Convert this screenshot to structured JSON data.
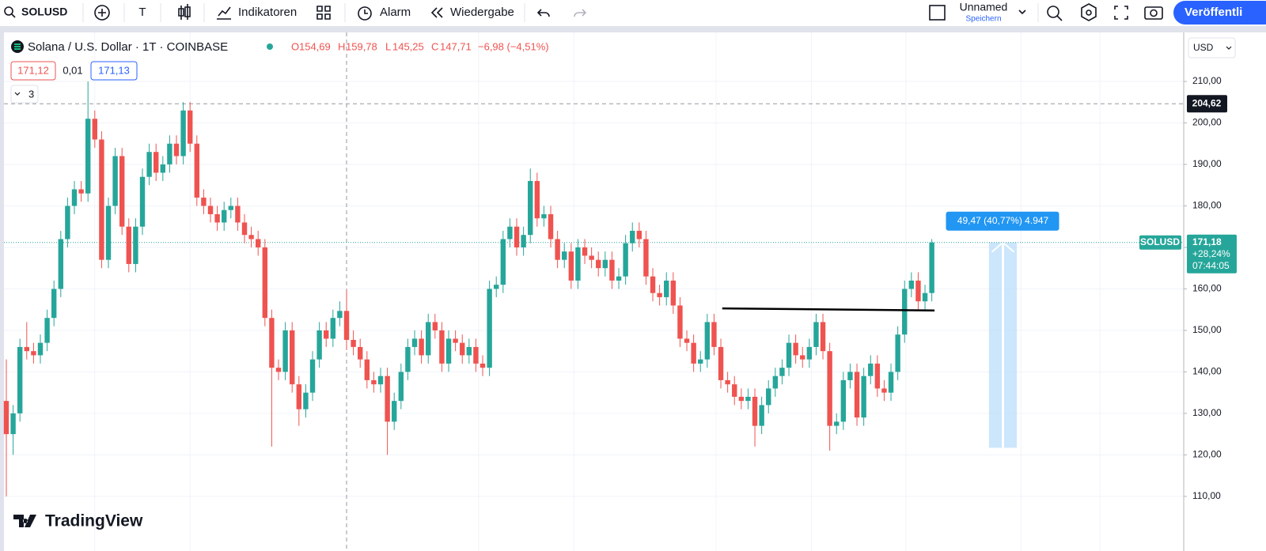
{
  "toolbar": {
    "symbol": "SOLUSD",
    "text_tool": "T",
    "indicators": "Indikatoren",
    "alert": "Alarm",
    "replay": "Wiedergabe",
    "layout_name": "Unnamed",
    "save": "Speichern",
    "publish": "Veröffentli"
  },
  "legend": {
    "open_label": "O",
    "open": "154,69",
    "high_label": "H",
    "high": "159,78",
    "low_label": "L",
    "low": "145,25",
    "close_label": "C",
    "close": "147,71",
    "change": "−6,98 (−4,51%)",
    "bid": "171,12",
    "spread": "0,01",
    "ask": "171,13",
    "indicator_count": "3"
  },
  "currency": "USD",
  "brand": "TradingView",
  "chart_data": {
    "type": "candlestick",
    "title": "Solana / U.S. Dollar · 1T · COINBASE",
    "up_color": "#26a69a",
    "down_color": "#ef5350",
    "open": [
      133,
      125,
      130,
      146,
      145,
      144,
      147,
      153,
      160,
      172,
      180,
      184,
      183,
      201,
      196,
      167,
      180,
      192,
      175,
      166,
      175,
      187,
      193,
      188,
      190,
      195,
      192,
      203,
      195,
      182,
      180,
      178,
      176,
      179,
      180,
      176,
      173,
      172,
      170,
      153,
      141,
      140,
      150,
      137,
      131,
      135,
      143,
      150,
      148,
      153,
      154.69,
      147.71,
      146,
      143,
      138,
      137,
      139,
      128,
      133,
      140,
      146,
      148,
      144,
      152,
      150,
      142,
      148,
      147,
      144,
      146,
      142,
      141,
      160,
      161,
      172,
      175,
      170,
      173,
      186,
      177,
      178,
      172,
      167,
      169,
      162,
      170,
      168,
      167,
      165,
      167,
      162,
      163,
      171,
      174,
      172,
      163,
      159,
      158,
      162,
      156,
      148,
      147,
      142,
      143,
      152,
      146,
      138,
      137,
      134,
      133,
      134,
      127,
      132,
      136,
      139,
      141,
      147,
      144,
      143,
      146,
      152,
      145,
      127,
      128,
      138,
      140,
      129,
      139,
      142,
      136,
      135,
      140,
      149,
      160,
      162,
      157,
      159
    ],
    "high": [
      143,
      132,
      148,
      152,
      147,
      149,
      155,
      162,
      174,
      182,
      186,
      186,
      210,
      203,
      198,
      182,
      194,
      194,
      177,
      177,
      189,
      195,
      195,
      192,
      197,
      197,
      205,
      205,
      197,
      184,
      182,
      180,
      181,
      182,
      182,
      178,
      175,
      174,
      172,
      155,
      143,
      152,
      152,
      139,
      137,
      145,
      152,
      152,
      155,
      157,
      159.78,
      150,
      148,
      145,
      140,
      141,
      141,
      135,
      142,
      148,
      150,
      150,
      154,
      154,
      152,
      150,
      150,
      149,
      148,
      148,
      144,
      162,
      163,
      174,
      177,
      177,
      175,
      189,
      188,
      180,
      180,
      174,
      171,
      171,
      172,
      172,
      170,
      169,
      169,
      169,
      165,
      173,
      176,
      176,
      174,
      165,
      161,
      164,
      164,
      158,
      150,
      149,
      145,
      154,
      154,
      148,
      140,
      139,
      136,
      136,
      136,
      134,
      138,
      141,
      143,
      149,
      149,
      146,
      148,
      154,
      154,
      147,
      130,
      140,
      142,
      142,
      141,
      144,
      144,
      138,
      142,
      151,
      162,
      164,
      164,
      161,
      172
    ],
    "low": [
      110,
      120,
      128,
      143,
      142,
      142,
      145,
      151,
      158,
      170,
      178,
      181,
      181,
      194,
      165,
      165,
      178,
      173,
      164,
      164,
      173,
      185,
      186,
      186,
      188,
      190,
      190,
      193,
      180,
      178,
      176,
      174,
      174,
      177,
      174,
      171,
      170,
      168,
      151,
      122,
      138,
      138,
      135,
      127,
      129,
      133,
      141,
      146,
      146,
      151,
      145.25,
      144,
      141,
      136,
      135,
      135,
      120,
      126,
      131,
      138,
      144,
      142,
      142,
      148,
      140,
      140,
      145,
      142,
      142,
      140,
      139,
      139,
      158,
      159,
      170,
      168,
      168,
      171,
      175,
      175,
      170,
      165,
      165,
      160,
      160,
      166,
      165,
      163,
      163,
      160,
      160,
      161,
      169,
      170,
      161,
      157,
      156,
      156,
      154,
      146,
      145,
      140,
      140,
      141,
      144,
      136,
      135,
      132,
      131,
      131,
      122,
      125,
      130,
      134,
      137,
      139,
      142,
      141,
      141,
      144,
      143,
      121,
      125,
      126,
      136,
      127,
      127,
      137,
      134,
      133,
      133,
      138,
      147,
      158,
      155,
      155,
      157
    ],
    "close": [
      125,
      130,
      146,
      145,
      144,
      147,
      153,
      160,
      172,
      180,
      184,
      183,
      201,
      196,
      167,
      180,
      192,
      175,
      166,
      175,
      187,
      193,
      188,
      190,
      195,
      192,
      203,
      195,
      182,
      180,
      178,
      176,
      179,
      180,
      176,
      173,
      172,
      170,
      153,
      141,
      140,
      150,
      137,
      131,
      135,
      143,
      150,
      148,
      153,
      154.69,
      147.71,
      146,
      143,
      138,
      137,
      139,
      128,
      133,
      140,
      146,
      148,
      144,
      152,
      150,
      142,
      148,
      147,
      144,
      146,
      142,
      141,
      160,
      161,
      172,
      175,
      170,
      173,
      186,
      177,
      178,
      172,
      167,
      169,
      162,
      170,
      168,
      167,
      165,
      167,
      162,
      163,
      171,
      174,
      172,
      163,
      159,
      158,
      162,
      156,
      148,
      147,
      142,
      143,
      152,
      146,
      138,
      137,
      134,
      133,
      134,
      127,
      132,
      136,
      139,
      141,
      147,
      144,
      143,
      146,
      152,
      145,
      127,
      128,
      138,
      140,
      129,
      139,
      142,
      136,
      135,
      140,
      149,
      160,
      162,
      157,
      159,
      171.18
    ],
    "xlim": [
      -0.93,
      172.9
    ],
    "xticks": [
      13,
      27,
      69.4,
      83.4,
      104.3,
      118.3,
      132.2,
      149.1,
      160.7
    ],
    "ylim": [
      99.5,
      222
    ],
    "yticks": [
      {
        "value": 110,
        "label": "110,00"
      },
      {
        "value": 120,
        "label": "120,00"
      },
      {
        "value": 130,
        "label": "130,00"
      },
      {
        "value": 140,
        "label": "140,00"
      },
      {
        "value": 150,
        "label": "150,00"
      },
      {
        "value": 160,
        "label": "160,00"
      },
      {
        "value": 170,
        "label": "170,00"
      },
      {
        "value": 180,
        "label": "180,00"
      },
      {
        "value": 190,
        "label": "190,00"
      },
      {
        "value": 200,
        "label": "200,00"
      },
      {
        "value": 210,
        "label": "210,00"
      }
    ],
    "grid": true,
    "crosshair": {
      "x": 50,
      "y": {
        "value": 204.62,
        "label": "204,62"
      }
    },
    "last_price": {
      "value": 171.18,
      "label": "171,18",
      "symbol": "SOLUSD",
      "change": "+28,24%",
      "countdown": "07:44:05"
    },
    "trendline": {
      "x": [
        105.2,
        136.4
      ],
      "y": [
        155.3,
        154.8
      ]
    },
    "measure": {
      "label": "49,47 (40,77%) 4.947",
      "from": 121.71,
      "to": 171.18,
      "x": [
        144.4,
        148.5
      ]
    }
  }
}
